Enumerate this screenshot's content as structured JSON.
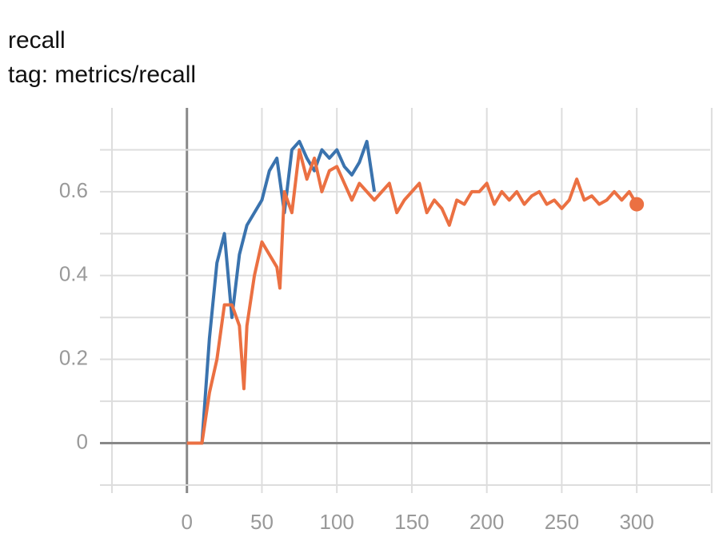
{
  "chart_data": {
    "type": "line",
    "title": "recall",
    "subtitle": "tag: metrics/recall",
    "xlim": [
      -58,
      349
    ],
    "xticks": [
      0,
      50,
      100,
      150,
      200,
      250,
      300
    ],
    "xgrid": [
      -50,
      0,
      50,
      100,
      150,
      200,
      250,
      300,
      350
    ],
    "ylim": [
      -0.1,
      0.8
    ],
    "yticks": [
      0,
      0.2,
      0.4,
      0.6
    ],
    "ygrid": [
      -0.1,
      0,
      0.1,
      0.2,
      0.3,
      0.4,
      0.5,
      0.6,
      0.7
    ],
    "grid": true,
    "series": [
      {
        "color": "#3a73ae",
        "x": [
          0,
          5,
          10,
          15,
          20,
          25,
          30,
          35,
          40,
          45,
          50,
          55,
          60,
          65,
          70,
          75,
          80,
          85,
          90,
          95,
          100,
          105,
          110,
          115,
          120,
          125
        ],
        "values": [
          0,
          0,
          0,
          0.25,
          0.43,
          0.5,
          0.3,
          0.45,
          0.52,
          0.55,
          0.58,
          0.65,
          0.68,
          0.55,
          0.7,
          0.72,
          0.68,
          0.65,
          0.7,
          0.68,
          0.7,
          0.66,
          0.64,
          0.67,
          0.72,
          0.6
        ]
      },
      {
        "color": "#eb7042",
        "x": [
          0,
          5,
          10,
          15,
          20,
          25,
          30,
          35,
          38,
          40,
          45,
          50,
          55,
          60,
          62,
          65,
          70,
          75,
          80,
          85,
          90,
          95,
          100,
          105,
          110,
          115,
          120,
          125,
          130,
          135,
          140,
          145,
          150,
          155,
          160,
          165,
          170,
          175,
          180,
          185,
          190,
          195,
          200,
          205,
          210,
          215,
          220,
          225,
          230,
          235,
          240,
          245,
          250,
          255,
          260,
          265,
          270,
          275,
          280,
          285,
          290,
          295,
          300
        ],
        "values": [
          0,
          0,
          0,
          0.12,
          0.2,
          0.33,
          0.33,
          0.28,
          0.13,
          0.28,
          0.4,
          0.48,
          0.45,
          0.42,
          0.37,
          0.6,
          0.55,
          0.7,
          0.63,
          0.68,
          0.6,
          0.65,
          0.66,
          0.62,
          0.58,
          0.62,
          0.6,
          0.58,
          0.6,
          0.62,
          0.55,
          0.58,
          0.6,
          0.62,
          0.55,
          0.58,
          0.56,
          0.52,
          0.58,
          0.57,
          0.6,
          0.6,
          0.62,
          0.57,
          0.6,
          0.58,
          0.6,
          0.57,
          0.59,
          0.6,
          0.57,
          0.58,
          0.56,
          0.58,
          0.63,
          0.58,
          0.59,
          0.57,
          0.58,
          0.6,
          0.58,
          0.6,
          0.57
        ]
      }
    ]
  }
}
